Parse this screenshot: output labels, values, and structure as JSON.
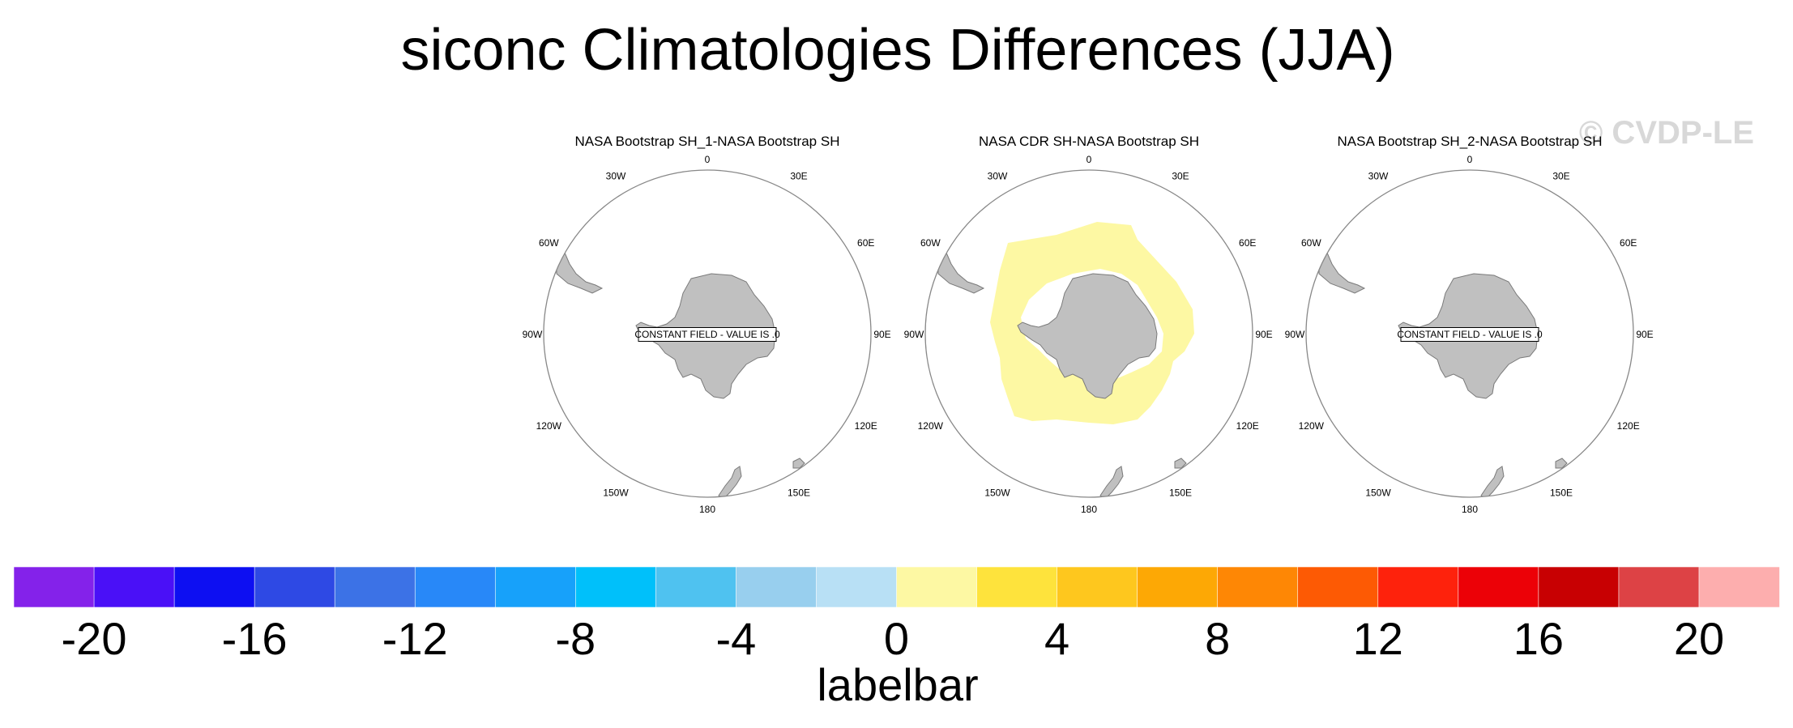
{
  "title": "siconc Climatologies Differences (JJA)",
  "watermark": "© CVDP-LE",
  "colors": {
    "land": "#c0c0c0",
    "land_edge": "#7a7a7a",
    "ocean_border": "#888888",
    "ice_diff": "#fdf8a3",
    "label_box_border": "#000000"
  },
  "lon_labels": [
    "0",
    "30E",
    "60E",
    "90E",
    "120E",
    "150E",
    "180",
    "150W",
    "120W",
    "90W",
    "60W",
    "30W"
  ],
  "panels": [
    {
      "title": "NASA Bootstrap SH_1-NASA Bootstrap SH",
      "constant_field_label": "CONSTANT FIELD - VALUE IS .0",
      "has_difference_field": false
    },
    {
      "title": "NASA CDR SH-NASA Bootstrap SH",
      "constant_field_label": "",
      "has_difference_field": true
    },
    {
      "title": "NASA Bootstrap SH_2-NASA Bootstrap SH",
      "constant_field_label": "CONSTANT FIELD - VALUE IS .0",
      "has_difference_field": false
    }
  ],
  "chart_data": {
    "type": "colorbar",
    "title": "labelbar",
    "levels": [
      -20,
      -18,
      -16,
      -14,
      -12,
      -10,
      -8,
      -6,
      -4,
      -2,
      0,
      2,
      4,
      6,
      8,
      10,
      12,
      14,
      16,
      18,
      20
    ],
    "tick_labels": [
      "-20",
      "-16",
      "-12",
      "-8",
      "-4",
      "0",
      "4",
      "8",
      "12",
      "16",
      "20"
    ],
    "colors": [
      "#8422ea",
      "#4a10f7",
      "#0d0ff2",
      "#2e49e4",
      "#3c72e6",
      "#2888f8",
      "#17a1fa",
      "#00c0fa",
      "#4fc2f0",
      "#98cfee",
      "#b8e0f5",
      "#fdf8a3",
      "#fee33c",
      "#fec71e",
      "#fda805",
      "#fe8705",
      "#fd5a04",
      "#fe220c",
      "#ec0107",
      "#c80002",
      "#dd4245",
      "#fdaeae"
    ]
  }
}
